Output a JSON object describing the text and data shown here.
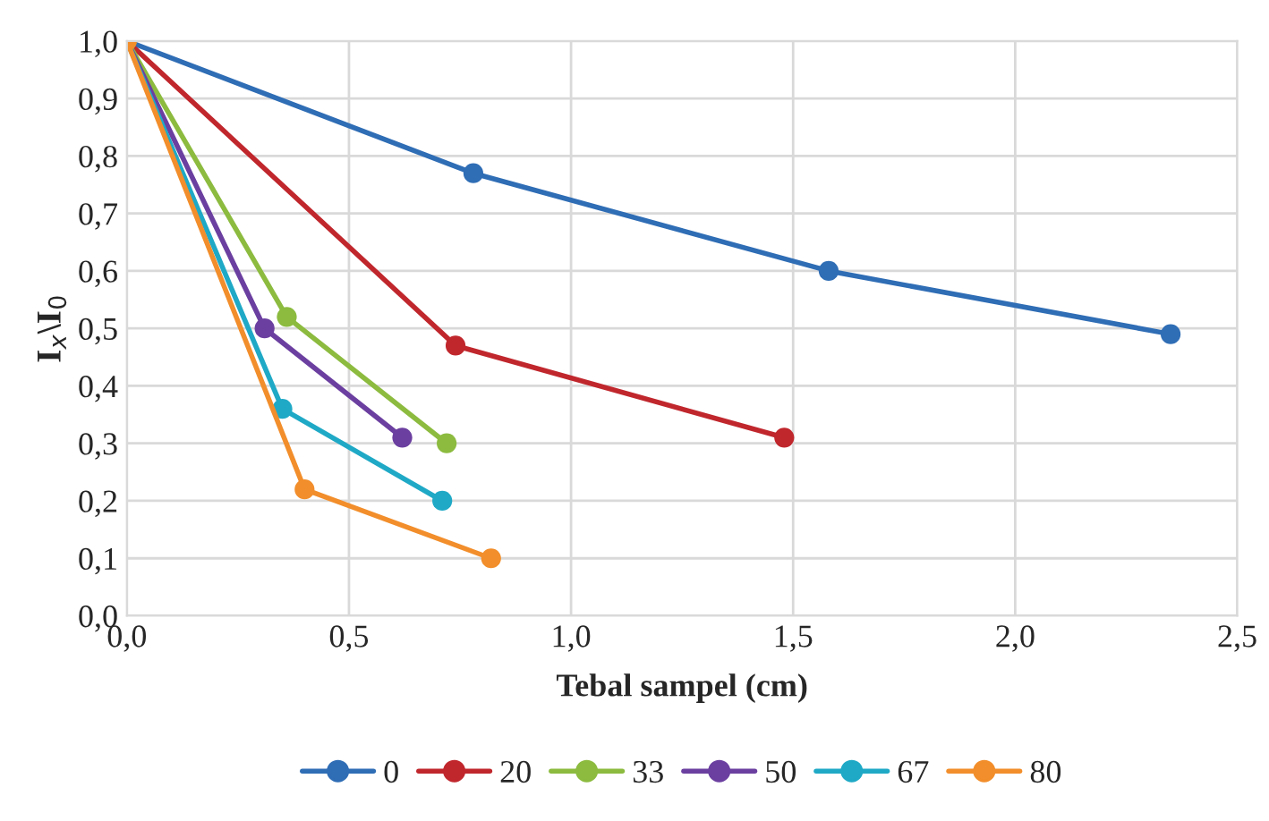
{
  "chart_data": {
    "type": "line",
    "xlabel": "Tebal sampel (cm)",
    "ylabel": "I$_{x}$\\I$_{0}$",
    "series": [
      {
        "name": "0",
        "color": "#2f6db5",
        "x": [
          0,
          0.78,
          1.58,
          2.35
        ],
        "values": [
          1.0,
          0.77,
          0.6,
          0.49
        ]
      },
      {
        "name": "20",
        "color": "#c0272d",
        "x": [
          0,
          0.74,
          1.48
        ],
        "values": [
          1.0,
          0.47,
          0.31
        ]
      },
      {
        "name": "33",
        "color": "#8cbb3f",
        "x": [
          0,
          0.36,
          0.72
        ],
        "values": [
          1.0,
          0.52,
          0.3
        ]
      },
      {
        "name": "50",
        "color": "#6b3fa0",
        "x": [
          0,
          0.31,
          0.62
        ],
        "values": [
          1.0,
          0.5,
          0.31
        ]
      },
      {
        "name": "67",
        "color": "#1fa9c6",
        "x": [
          0,
          0.35,
          0.71
        ],
        "values": [
          1.0,
          0.36,
          0.2
        ]
      },
      {
        "name": "80",
        "color": "#f28e2b",
        "x": [
          0,
          0.4,
          0.82
        ],
        "values": [
          1.0,
          0.22,
          0.1
        ]
      }
    ],
    "xlim": [
      0,
      2.5
    ],
    "xticks": [
      {
        "value": 0,
        "label": "0,0"
      },
      {
        "value": 0.5,
        "label": "0,5"
      },
      {
        "value": 1.0,
        "label": "1,0"
      },
      {
        "value": 1.5,
        "label": "1,5"
      },
      {
        "value": 2.0,
        "label": "2,0"
      },
      {
        "value": 2.5,
        "label": "2,5"
      }
    ],
    "ylim": [
      0,
      1.0
    ],
    "yticks": [
      {
        "value": 0,
        "label": "0,0"
      },
      {
        "value": 0.1,
        "label": "0,1"
      },
      {
        "value": 0.2,
        "label": "0,2"
      },
      {
        "value": 0.3,
        "label": "0,3"
      },
      {
        "value": 0.4,
        "label": "0,4"
      },
      {
        "value": 0.5,
        "label": "0,5"
      },
      {
        "value": 0.6,
        "label": "0,6"
      },
      {
        "value": 0.7,
        "label": "0,7"
      },
      {
        "value": 0.8,
        "label": "0,8"
      },
      {
        "value": 0.9,
        "label": "0,9"
      },
      {
        "value": 1.0,
        "label": "1,0"
      }
    ],
    "grid": true,
    "legend": "bottom",
    "marker": "circle",
    "line_style": "solid"
  }
}
